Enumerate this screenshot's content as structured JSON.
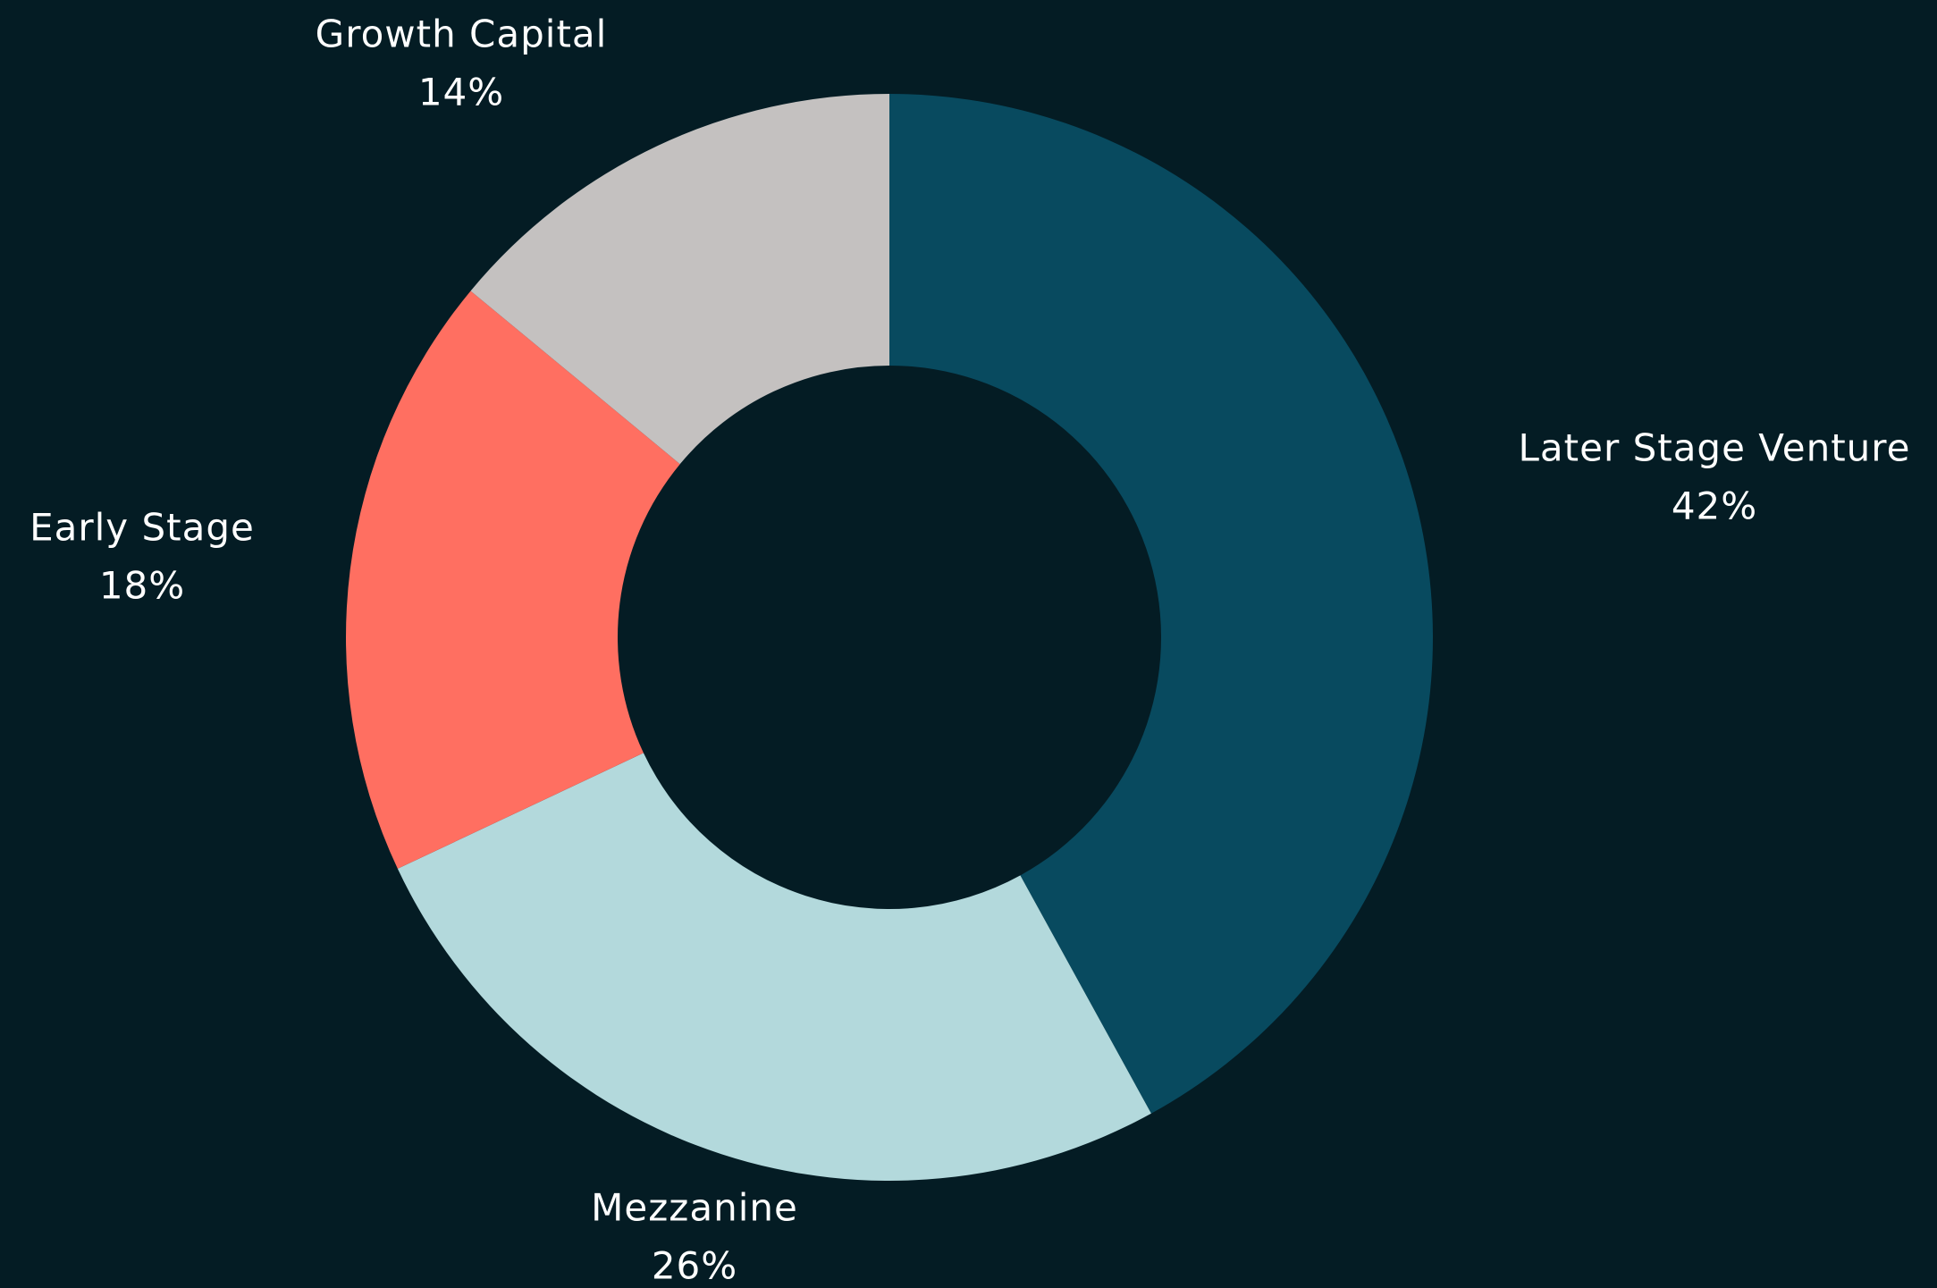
{
  "chart_data": {
    "type": "pie",
    "donut": true,
    "categories": [
      "Later Stage Venture",
      "Mezzanine",
      "Early Stage",
      "Growth Capital"
    ],
    "values": [
      42,
      26,
      18,
      14
    ],
    "value_labels": [
      "42%",
      "26%",
      "18%",
      "14%"
    ],
    "colors": [
      "#084a5f",
      "#b3d9dc",
      "#ff6f61",
      "#c4c1c0"
    ]
  }
}
